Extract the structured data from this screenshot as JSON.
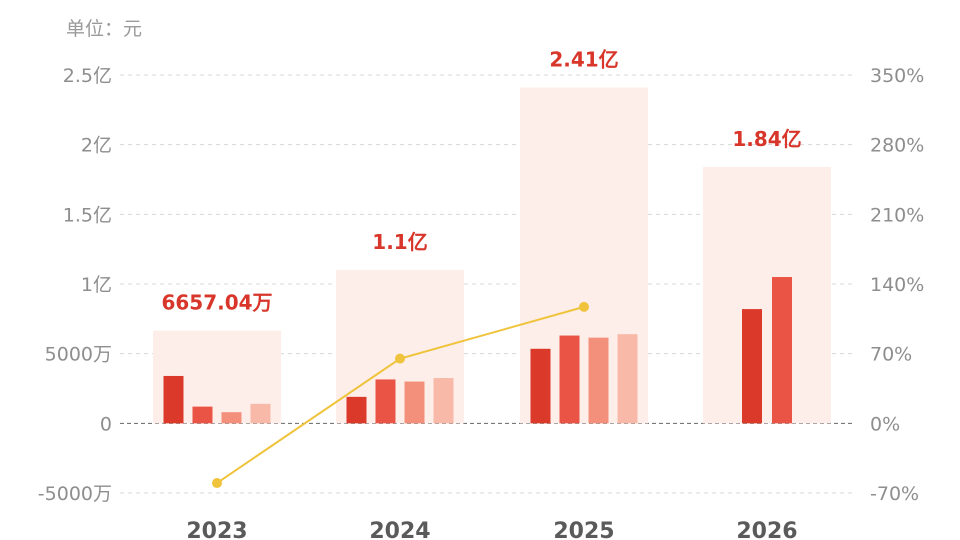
{
  "chart_data": {
    "type": "bar",
    "unit_label": "单位：元",
    "categories": [
      "2023",
      "2024",
      "2025",
      "2026"
    ],
    "totals": {
      "values": [
        66570400,
        110000000,
        241000000,
        184000000
      ],
      "labels": [
        "6657.04万",
        "1.1亿",
        "2.41亿",
        "1.84亿"
      ]
    },
    "bar_values": [
      [
        34000000,
        12000000,
        8000000,
        14000000
      ],
      [
        19000000,
        31500000,
        30000000,
        32500000
      ],
      [
        53500000,
        63000000,
        61500000,
        64000000
      ],
      [
        82000000,
        105000000
      ]
    ],
    "growth_line": {
      "categories": [
        "2023",
        "2024",
        "2025"
      ],
      "values": [
        -60,
        65,
        117
      ]
    },
    "y_left": {
      "lim": [
        -50000000,
        250000000
      ],
      "ticks": [
        -50000000,
        0,
        50000000,
        100000000,
        150000000,
        200000000,
        250000000
      ],
      "tick_labels": [
        "-5000万",
        "0",
        "5000万",
        "1亿",
        "1.5亿",
        "2亿",
        "2.5亿"
      ]
    },
    "y_right": {
      "lim": [
        -70,
        350
      ],
      "ticks": [
        -70,
        0,
        70,
        140,
        210,
        280,
        350
      ],
      "tick_labels": [
        "-70%",
        "0%",
        "70%",
        "140%",
        "210%",
        "280%",
        "350%"
      ]
    },
    "grid": true,
    "colors": {
      "total_bar_bg": "#fdeee9",
      "quarter_bars": [
        "#db3a2b",
        "#ea5445",
        "#f2907b",
        "#f8b9a9"
      ],
      "growth_line": "#f0c33c",
      "total_label": "#d8362a",
      "grid": "#d8d8d8",
      "zero_line": "#666666"
    }
  }
}
